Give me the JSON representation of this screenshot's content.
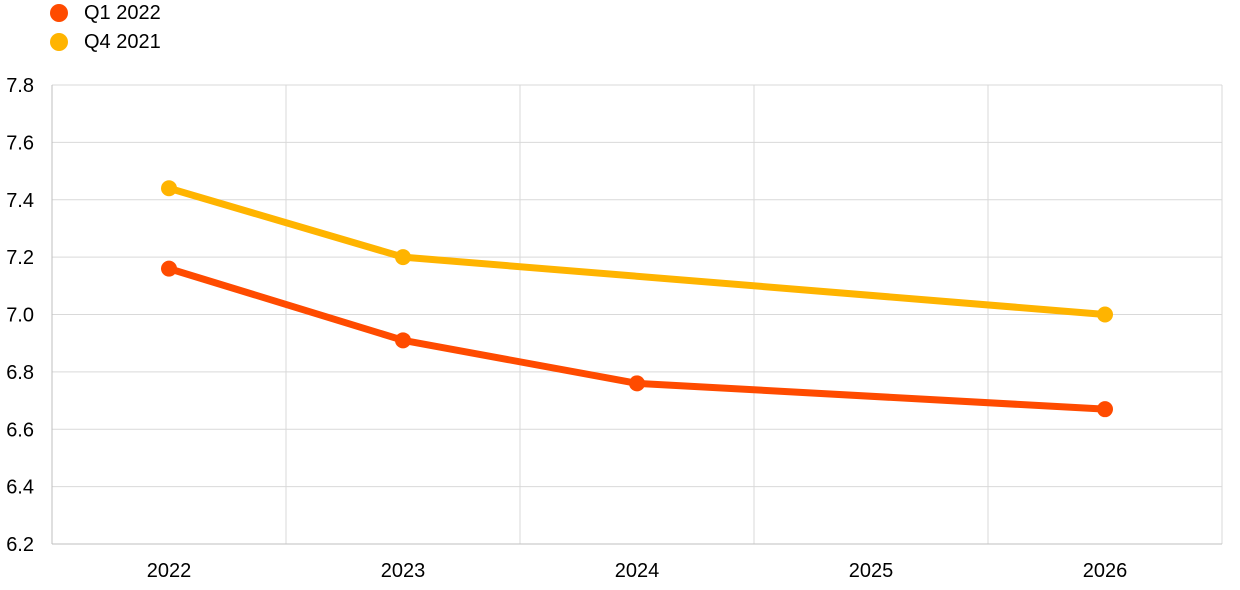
{
  "chart_data": {
    "type": "line",
    "categories": [
      "2022",
      "2023",
      "2024",
      "2025",
      "2026"
    ],
    "series": [
      {
        "name": "Q1 2022",
        "color": "#ff4b00",
        "values": [
          7.16,
          6.91,
          6.76,
          null,
          6.67
        ]
      },
      {
        "name": "Q4 2021",
        "color": "#ffb400",
        "values": [
          7.44,
          7.2,
          null,
          null,
          7.0
        ]
      }
    ],
    "ylim": [
      6.2,
      7.8
    ],
    "yticks": [
      "6.2",
      "6.4",
      "6.6",
      "6.8",
      "7.0",
      "7.2",
      "7.4",
      "7.6",
      "7.8"
    ],
    "grid": true,
    "legend_position": "top-left",
    "title": "",
    "xlabel": "",
    "ylabel": ""
  }
}
